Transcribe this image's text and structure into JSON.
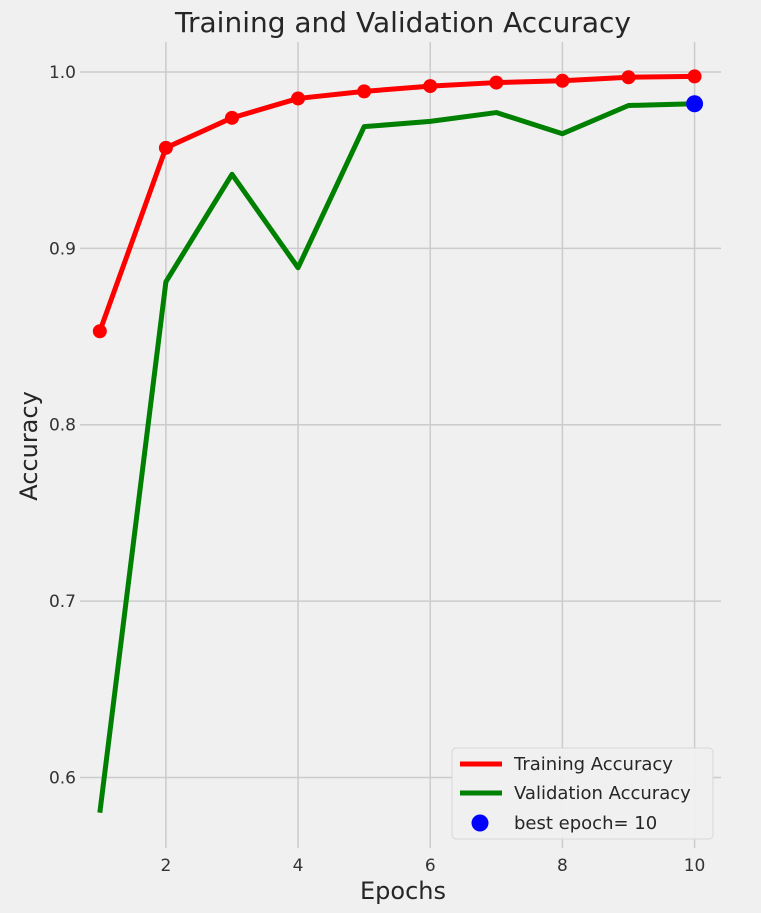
{
  "chart_data": {
    "type": "line",
    "title": "Training and Validation Accuracy",
    "xlabel": "Epochs",
    "ylabel": "Accuracy",
    "xlim": [
      0.7,
      10.4
    ],
    "ylim": [
      0.56,
      1.017
    ],
    "x_ticks": [
      2,
      4,
      6,
      8,
      10
    ],
    "x_tick_labels": [
      "2",
      "4",
      "6",
      "8",
      "10"
    ],
    "y_ticks": [
      0.6,
      0.7,
      0.8,
      0.9,
      1.0
    ],
    "y_tick_labels": [
      "0.6",
      "0.7",
      "0.8",
      "0.9",
      "1.0"
    ],
    "grid": true,
    "legend_position": "bottom-right",
    "x": [
      1,
      2,
      3,
      4,
      5,
      6,
      7,
      8,
      9,
      10
    ],
    "series": [
      {
        "name": "Training Accuracy",
        "color": "#ff0000",
        "markers": true,
        "values": [
          0.853,
          0.957,
          0.974,
          0.985,
          0.989,
          0.992,
          0.994,
          0.995,
          0.997,
          0.9975
        ]
      },
      {
        "name": "Validation Accuracy",
        "color": "#008000",
        "markers": false,
        "values": [
          0.58,
          0.881,
          0.942,
          0.889,
          0.969,
          0.972,
          0.977,
          0.965,
          0.981,
          0.982
        ]
      }
    ],
    "best_point": {
      "label": "best epoch= 10",
      "x": 10,
      "y": 0.982,
      "color": "#0000ff"
    }
  }
}
